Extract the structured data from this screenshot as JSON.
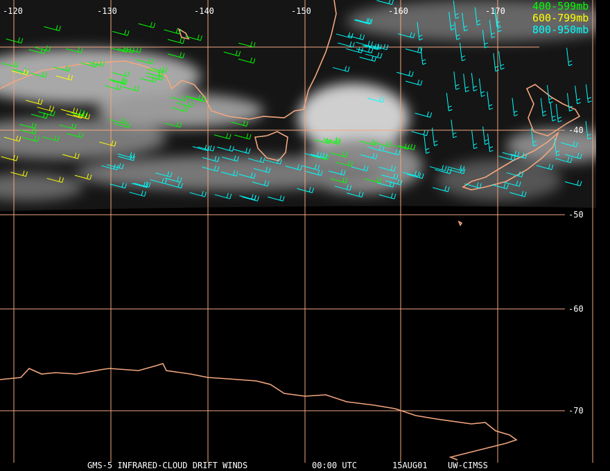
{
  "map": {
    "longitude_labels": [
      "-120",
      "-130",
      "-140",
      "-150",
      "-160",
      "-170"
    ],
    "latitude_labels": [
      "-40",
      "-50",
      "-60",
      "-70"
    ],
    "legend": [
      "400-599mb",
      "600-799mb",
      "800-950mb"
    ],
    "footer": {
      "product": "GMS-5 INFRARED-CLOUD DRIFT WINDS",
      "time": "00:00 UTC",
      "date": "15AUG01",
      "source": "UW-CIMSS"
    }
  }
}
